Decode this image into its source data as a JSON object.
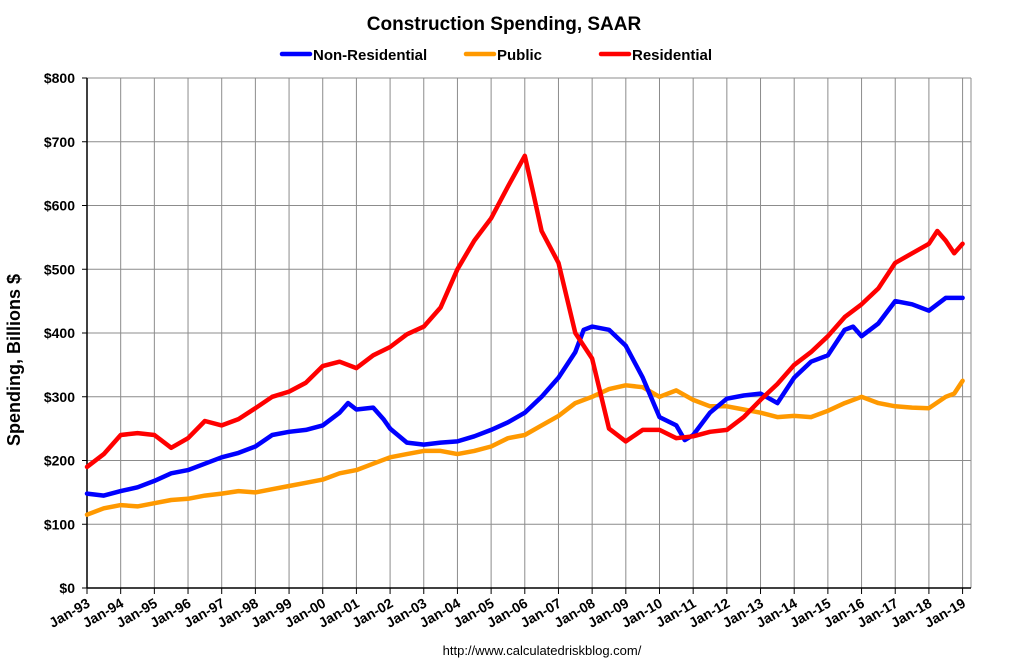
{
  "chart_data": {
    "type": "line",
    "title": "Construction Spending, SAAR",
    "xlabel": "",
    "ylabel": "Spending, Billions $",
    "source": "http://www.calculatedriskblog.com/",
    "ylim": [
      0,
      800
    ],
    "yticks": [
      0,
      100,
      200,
      300,
      400,
      500,
      600,
      700,
      800
    ],
    "ytick_labels": [
      "$0",
      "$100",
      "$200",
      "$300",
      "$400",
      "$500",
      "$600",
      "$700",
      "$800"
    ],
    "xlim": [
      1993.0,
      2019.25
    ],
    "xticks": [
      1993,
      1994,
      1995,
      1996,
      1997,
      1998,
      1999,
      2000,
      2001,
      2002,
      2003,
      2004,
      2005,
      2006,
      2007,
      2008,
      2009,
      2010,
      2011,
      2012,
      2013,
      2014,
      2015,
      2016,
      2017,
      2018,
      2019
    ],
    "xtick_labels": [
      "Jan-93",
      "Jan-94",
      "Jan-95",
      "Jan-96",
      "Jan-97",
      "Jan-98",
      "Jan-99",
      "Jan-00",
      "Jan-01",
      "Jan-02",
      "Jan-03",
      "Jan-04",
      "Jan-05",
      "Jan-06",
      "Jan-07",
      "Jan-08",
      "Jan-09",
      "Jan-10",
      "Jan-11",
      "Jan-12",
      "Jan-13",
      "Jan-14",
      "Jan-15",
      "Jan-16",
      "Jan-17",
      "Jan-18",
      "Jan-19"
    ],
    "grid": true,
    "legend_position": "top-center",
    "series": [
      {
        "name": "Non-Residential",
        "color": "#0000ff",
        "x": [
          1993.0,
          1993.5,
          1994.0,
          1994.5,
          1995.0,
          1995.5,
          1996.0,
          1996.5,
          1997.0,
          1997.5,
          1998.0,
          1998.5,
          1999.0,
          1999.5,
          2000.0,
          2000.5,
          2000.75,
          2001.0,
          2001.5,
          2001.8,
          2002.0,
          2002.5,
          2003.0,
          2003.5,
          2004.0,
          2004.5,
          2005.0,
          2005.5,
          2006.0,
          2006.5,
          2007.0,
          2007.5,
          2007.75,
          2008.0,
          2008.5,
          2009.0,
          2009.5,
          2010.0,
          2010.5,
          2010.75,
          2011.0,
          2011.5,
          2012.0,
          2012.5,
          2013.0,
          2013.5,
          2014.0,
          2014.5,
          2015.0,
          2015.5,
          2015.75,
          2016.0,
          2016.5,
          2017.0,
          2017.5,
          2018.0,
          2018.5,
          2018.75,
          2019.0
        ],
        "values": [
          148,
          145,
          152,
          158,
          168,
          180,
          185,
          195,
          205,
          212,
          222,
          240,
          245,
          248,
          255,
          275,
          290,
          280,
          283,
          265,
          250,
          228,
          225,
          228,
          230,
          238,
          248,
          260,
          275,
          300,
          330,
          370,
          405,
          410,
          405,
          380,
          330,
          268,
          255,
          232,
          240,
          275,
          297,
          302,
          305,
          290,
          330,
          355,
          365,
          405,
          410,
          395,
          415,
          450,
          445,
          435,
          455,
          455,
          455
        ]
      },
      {
        "name": "Public",
        "color": "#ff9900",
        "x": [
          1993.0,
          1993.5,
          1994.0,
          1994.5,
          1995.0,
          1995.5,
          1996.0,
          1996.5,
          1997.0,
          1997.5,
          1998.0,
          1998.5,
          1999.0,
          1999.5,
          2000.0,
          2000.5,
          2001.0,
          2001.5,
          2002.0,
          2002.5,
          2003.0,
          2003.5,
          2004.0,
          2004.5,
          2005.0,
          2005.5,
          2006.0,
          2006.5,
          2007.0,
          2007.5,
          2008.0,
          2008.5,
          2009.0,
          2009.5,
          2010.0,
          2010.5,
          2011.0,
          2011.5,
          2012.0,
          2012.5,
          2013.0,
          2013.5,
          2014.0,
          2014.5,
          2015.0,
          2015.5,
          2016.0,
          2016.5,
          2017.0,
          2017.5,
          2018.0,
          2018.5,
          2018.75,
          2019.0
        ],
        "values": [
          115,
          125,
          130,
          128,
          133,
          138,
          140,
          145,
          148,
          152,
          150,
          155,
          160,
          165,
          170,
          180,
          185,
          195,
          205,
          210,
          215,
          215,
          210,
          215,
          222,
          235,
          240,
          255,
          270,
          290,
          300,
          312,
          318,
          315,
          300,
          310,
          295,
          285,
          285,
          280,
          275,
          268,
          270,
          268,
          278,
          290,
          300,
          290,
          285,
          283,
          282,
          300,
          305,
          325
        ]
      },
      {
        "name": "Residential",
        "color": "#ff0000",
        "x": [
          1993.0,
          1993.5,
          1994.0,
          1994.5,
          1995.0,
          1995.5,
          1996.0,
          1996.5,
          1997.0,
          1997.5,
          1998.0,
          1998.5,
          1999.0,
          1999.5,
          2000.0,
          2000.5,
          2001.0,
          2001.5,
          2002.0,
          2002.5,
          2003.0,
          2003.5,
          2004.0,
          2004.5,
          2005.0,
          2005.5,
          2006.0,
          2006.25,
          2006.5,
          2007.0,
          2007.5,
          2008.0,
          2008.5,
          2009.0,
          2009.5,
          2010.0,
          2010.5,
          2011.0,
          2011.5,
          2012.0,
          2012.5,
          2013.0,
          2013.5,
          2014.0,
          2014.5,
          2015.0,
          2015.5,
          2016.0,
          2016.5,
          2017.0,
          2017.5,
          2018.0,
          2018.25,
          2018.5,
          2018.75,
          2019.0
        ],
        "values": [
          190,
          210,
          240,
          243,
          240,
          220,
          235,
          262,
          255,
          265,
          282,
          300,
          308,
          322,
          348,
          355,
          345,
          365,
          378,
          398,
          410,
          440,
          500,
          545,
          580,
          630,
          678,
          620,
          560,
          510,
          400,
          360,
          250,
          230,
          248,
          248,
          235,
          238,
          245,
          248,
          268,
          295,
          320,
          350,
          370,
          395,
          425,
          445,
          470,
          510,
          525,
          540,
          560,
          545,
          525,
          540
        ]
      }
    ]
  }
}
